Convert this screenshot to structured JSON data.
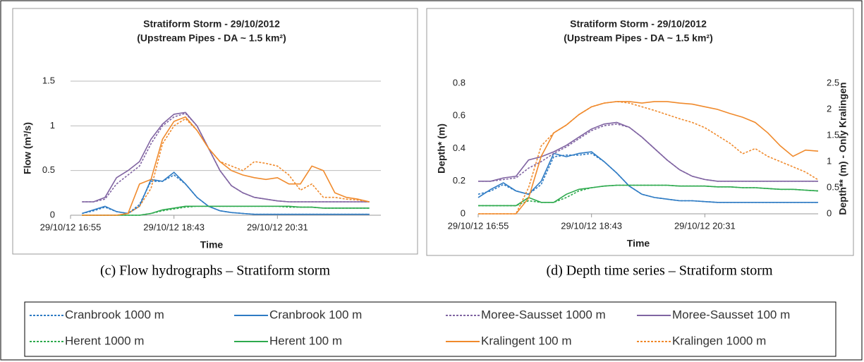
{
  "chart_data": [
    {
      "type": "line",
      "title": "Stratiform Storm - 29/10/2012",
      "subtitle": "(Upstream Pipes - DA ~ 1.5 km²)",
      "caption": "(c)  Flow hydrographs – Stratiform storm",
      "x_label": "Time",
      "y_label": "Flow (m³/s)",
      "x": [
        "29/10/12 16:55",
        "29/10/12 17:07",
        "29/10/12 17:19",
        "29/10/12 17:31",
        "29/10/12 17:43",
        "29/10/12 17:55",
        "29/10/12 18:07",
        "29/10/12 18:19",
        "29/10/12 18:31",
        "29/10/12 18:43",
        "29/10/12 18:55",
        "29/10/12 19:07",
        "29/10/12 19:19",
        "29/10/12 19:31",
        "29/10/12 19:43",
        "29/10/12 19:55",
        "29/10/12 20:07",
        "29/10/12 20:19",
        "29/10/12 20:31",
        "29/10/12 20:43",
        "29/10/12 20:55",
        "29/10/12 21:07",
        "29/10/12 21:19",
        "29/10/12 21:31",
        "29/10/12 21:43",
        "29/10/12 21:55",
        "29/10/12 22:07",
        "29/10/12 22:19"
      ],
      "xlim": [
        "29/10/12 16:55",
        "29/10/12 22:19"
      ],
      "xticks": [
        "29/10/12 16:55",
        "29/10/12 18:43",
        "29/10/12 20:31"
      ],
      "ylim": [
        0,
        1.5
      ],
      "yticks": [
        0,
        0.5,
        1,
        1.5
      ],
      "grid": true,
      "series": [
        {
          "name": "Cranbrook 1000 m",
          "color": "#2e7bc4",
          "dash": true,
          "values": [
            null,
            0.02,
            0.05,
            0.09,
            0.04,
            0.02,
            0.12,
            0.38,
            0.38,
            0.45,
            0.35,
            0.2,
            0.1,
            0.05,
            0.03,
            0.02,
            0.01,
            0.01,
            0.01,
            0.01,
            0.01,
            0.01,
            0.01,
            0.01,
            0.01,
            0.01,
            0.01,
            null
          ]
        },
        {
          "name": "Cranbrook 100 m",
          "color": "#2e7bc4",
          "dash": false,
          "values": [
            null,
            0.02,
            0.06,
            0.1,
            0.04,
            0.02,
            0.1,
            0.4,
            0.38,
            0.48,
            0.35,
            0.2,
            0.1,
            0.05,
            0.03,
            0.02,
            0.01,
            0.01,
            0.01,
            0.01,
            0.01,
            0.01,
            0.01,
            0.01,
            0.01,
            0.01,
            0.01,
            null
          ]
        },
        {
          "name": "Moree-Sausset 1000 m",
          "color": "#8064a2",
          "dash": true,
          "values": [
            null,
            0.15,
            0.15,
            0.18,
            0.35,
            0.45,
            0.55,
            0.8,
            1.0,
            1.1,
            1.14,
            1.0,
            0.75,
            0.5,
            0.33,
            0.25,
            0.2,
            0.18,
            0.16,
            0.15,
            0.15,
            0.15,
            0.15,
            0.15,
            0.15,
            0.15,
            0.15,
            null
          ]
        },
        {
          "name": "Moree-Sausset 100 m",
          "color": "#8064a2",
          "dash": false,
          "values": [
            null,
            0.15,
            0.15,
            0.2,
            0.42,
            0.5,
            0.6,
            0.85,
            1.02,
            1.13,
            1.15,
            1.0,
            0.75,
            0.5,
            0.33,
            0.25,
            0.2,
            0.18,
            0.16,
            0.15,
            0.15,
            0.15,
            0.15,
            0.15,
            0.15,
            0.15,
            0.15,
            null
          ]
        },
        {
          "name": "Herent 1000 m",
          "color": "#2eaa4e",
          "dash": true,
          "values": [
            null,
            0,
            0,
            0,
            0,
            0,
            0,
            0.02,
            0.05,
            0.07,
            0.09,
            0.1,
            0.1,
            0.1,
            0.1,
            0.1,
            0.1,
            0.1,
            0.1,
            0.09,
            0.09,
            0.09,
            0.08,
            0.08,
            0.08,
            0.08,
            0.08,
            null
          ]
        },
        {
          "name": "Herent 100 m",
          "color": "#2eaa4e",
          "dash": false,
          "values": [
            null,
            0,
            0,
            0,
            0,
            0,
            0,
            0.02,
            0.06,
            0.08,
            0.1,
            0.1,
            0.1,
            0.1,
            0.1,
            0.1,
            0.1,
            0.1,
            0.1,
            0.1,
            0.09,
            0.09,
            0.08,
            0.08,
            0.08,
            0.08,
            0.08,
            null
          ]
        },
        {
          "name": "Kralingent 100 m",
          "color": "#f08a2c",
          "dash": false,
          "values": [
            null,
            0,
            0,
            0,
            0,
            0.02,
            0.35,
            0.4,
            0.85,
            1.05,
            1.1,
            0.95,
            0.75,
            0.6,
            0.5,
            0.45,
            0.42,
            0.4,
            0.42,
            0.35,
            0.35,
            0.55,
            0.5,
            0.25,
            0.2,
            0.18,
            0.15,
            null
          ]
        },
        {
          "name": "Kralingen 1000 m",
          "color": "#f08a2c",
          "dash": true,
          "values": [
            null,
            0,
            0,
            0,
            0,
            0.02,
            0.1,
            0.3,
            0.8,
            1.0,
            1.08,
            0.95,
            0.75,
            0.6,
            0.55,
            0.5,
            0.6,
            0.58,
            0.55,
            0.45,
            0.28,
            0.35,
            0.2,
            0.2,
            0.18,
            0.17,
            0.15,
            null
          ]
        }
      ]
    },
    {
      "type": "line",
      "title": "Stratiform Storm - 29/10/2012",
      "subtitle": "(Upstream Pipes - DA ~ 1.5 km²)",
      "caption": "(d)  Depth time series – Stratiform storm",
      "x_label": "Time",
      "y_label": "Depth* (m)",
      "y2_label": "Depth** (m) - Only Kralingen",
      "x": [
        "29/10/12 16:55",
        "29/10/12 17:07",
        "29/10/12 17:19",
        "29/10/12 17:31",
        "29/10/12 17:43",
        "29/10/12 17:55",
        "29/10/12 18:07",
        "29/10/12 18:19",
        "29/10/12 18:31",
        "29/10/12 18:43",
        "29/10/12 18:55",
        "29/10/12 19:07",
        "29/10/12 19:19",
        "29/10/12 19:31",
        "29/10/12 19:43",
        "29/10/12 19:55",
        "29/10/12 20:07",
        "29/10/12 20:19",
        "29/10/12 20:31",
        "29/10/12 20:43",
        "29/10/12 20:55",
        "29/10/12 21:07",
        "29/10/12 21:19",
        "29/10/12 21:31",
        "29/10/12 21:43",
        "29/10/12 21:55",
        "29/10/12 22:07",
        "29/10/12 22:19"
      ],
      "xlim": [
        "29/10/12 16:55",
        "29/10/12 22:19"
      ],
      "xticks": [
        "29/10/12 16:55",
        "29/10/12 18:43",
        "29/10/12 20:31"
      ],
      "ylim": [
        0,
        0.8
      ],
      "yticks": [
        0,
        0.2,
        0.4,
        0.6,
        0.8
      ],
      "y2lim": [
        0,
        2.5
      ],
      "y2ticks": [
        0,
        0.5,
        1,
        1.5,
        2,
        2.5
      ],
      "series": [
        {
          "values": [
            0.12,
            0.14,
            0.18,
            0.14,
            0.12,
            0.18,
            0.35,
            0.36,
            0.36,
            0.37,
            0.32,
            0.25,
            0.17,
            0.12,
            0.1,
            0.09,
            0.08,
            0.08,
            0.075,
            0.07,
            0.07,
            0.07,
            0.07,
            0.07,
            0.07,
            0.07,
            0.07,
            0.07
          ]
        },
        {
          "values": [
            0.1,
            0.15,
            0.19,
            0.14,
            0.12,
            0.2,
            0.37,
            0.35,
            0.37,
            0.38,
            0.32,
            0.25,
            0.17,
            0.12,
            0.1,
            0.09,
            0.08,
            0.08,
            0.075,
            0.07,
            0.07,
            0.07,
            0.07,
            0.07,
            0.07,
            0.07,
            0.07,
            0.07
          ]
        },
        {
          "values": [
            0.2,
            0.2,
            0.21,
            0.22,
            0.28,
            0.32,
            0.37,
            0.41,
            0.46,
            0.51,
            0.54,
            0.55,
            0.53,
            0.47,
            0.4,
            0.33,
            0.27,
            0.23,
            0.21,
            0.2,
            0.2,
            0.2,
            0.2,
            0.2,
            0.2,
            0.2,
            0.2,
            0.2
          ]
        },
        {
          "values": [
            0.2,
            0.2,
            0.22,
            0.23,
            0.33,
            0.35,
            0.38,
            0.42,
            0.47,
            0.52,
            0.55,
            0.56,
            0.53,
            0.47,
            0.4,
            0.33,
            0.27,
            0.23,
            0.21,
            0.2,
            0.2,
            0.2,
            0.2,
            0.2,
            0.2,
            0.2,
            0.2,
            0.2
          ]
        },
        {
          "values": [
            0.05,
            0.05,
            0.05,
            0.05,
            0.08,
            0.07,
            0.07,
            0.1,
            0.14,
            0.16,
            0.17,
            0.175,
            0.175,
            0.175,
            0.175,
            0.175,
            0.17,
            0.17,
            0.17,
            0.165,
            0.165,
            0.16,
            0.16,
            0.155,
            0.15,
            0.15,
            0.145,
            0.14
          ]
        },
        {
          "values": [
            0.05,
            0.05,
            0.05,
            0.05,
            0.1,
            0.07,
            0.07,
            0.12,
            0.15,
            0.16,
            0.17,
            0.175,
            0.175,
            0.175,
            0.175,
            0.175,
            0.17,
            0.17,
            0.17,
            0.165,
            0.165,
            0.16,
            0.16,
            0.155,
            0.15,
            0.15,
            0.145,
            0.14
          ]
        },
        {
          "axis": "y2",
          "values": [
            0,
            0,
            0,
            0,
            0.3,
            1.1,
            1.55,
            1.7,
            1.9,
            2.05,
            2.12,
            2.15,
            2.15,
            2.12,
            2.15,
            2.15,
            2.12,
            2.1,
            2.05,
            2.0,
            1.92,
            1.85,
            1.75,
            1.55,
            1.3,
            1.1,
            1.22,
            1.2
          ]
        },
        {
          "axis": "y2",
          "values": [
            0,
            0,
            0,
            0,
            0.5,
            1.3,
            1.55,
            1.7,
            1.9,
            2.05,
            2.12,
            2.15,
            2.12,
            2.05,
            1.98,
            1.9,
            1.82,
            1.75,
            1.65,
            1.5,
            1.35,
            1.15,
            1.25,
            1.1,
            1.0,
            0.9,
            0.8,
            0.65
          ]
        }
      ]
    }
  ]
}
